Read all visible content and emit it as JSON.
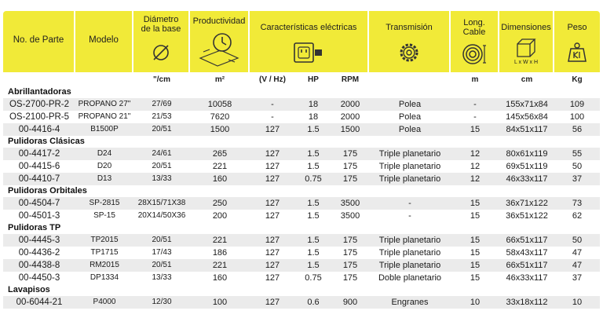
{
  "headers": {
    "part": "No. de Parte",
    "model": "Modelo",
    "base_line1": "Diámetro",
    "base_line2": "de la base",
    "productivity": "Productividad",
    "electrical": "Características eléctricas",
    "transmission": "Transmisión",
    "cable_line1": "Long.",
    "cable_line2": "Cable",
    "dimensions": "Dimensiones",
    "dims_box_label": "L x W x H",
    "weight": "Peso"
  },
  "units": {
    "base": "\"/cm",
    "productivity": "m²",
    "voltage": "(V / Hz)",
    "hp": "HP",
    "rpm": "RPM",
    "cable": "m",
    "dimensions": "cm",
    "weight": "Kg"
  },
  "colors": {
    "header_bg": "#f1ea38",
    "row_shade": "#ebebeb"
  },
  "icons": {
    "base": "diameter-icon",
    "productivity": "clock-area-icon",
    "electrical": "power-outlet-icon",
    "transmission": "gear-icon",
    "cable": "cable-coil-icon",
    "dimensions": "box-icon",
    "weight": "weight-icon"
  },
  "sections": [
    {
      "title": "Abrillantadoras",
      "rows": [
        {
          "part": "OS-2700-PR-2",
          "model": "PROPANO 27\"",
          "base": "27/69",
          "productivity": "10058",
          "voltage": "-",
          "hp": "18",
          "rpm": "2000",
          "transmission": "Polea",
          "cable": "-",
          "dimensions": "155x71x84",
          "weight": "109"
        },
        {
          "part": "OS-2100-PR-5",
          "model": "PROPANO 21\"",
          "base": "21/53",
          "productivity": "7620",
          "voltage": "-",
          "hp": "18",
          "rpm": "2000",
          "transmission": "Polea",
          "cable": "-",
          "dimensions": "145x56x84",
          "weight": "100"
        },
        {
          "part": "00-4416-4",
          "model": "B1500P",
          "base": "20/51",
          "productivity": "1500",
          "voltage": "127",
          "hp": "1.5",
          "rpm": "1500",
          "transmission": "Polea",
          "cable": "15",
          "dimensions": "84x51x117",
          "weight": "56"
        }
      ]
    },
    {
      "title": "Pulidoras Clásicas",
      "rows": [
        {
          "part": "00-4417-2",
          "model": "D24",
          "base": "24/61",
          "productivity": "265",
          "voltage": "127",
          "hp": "1.5",
          "rpm": "175",
          "transmission": "Triple planetario",
          "cable": "12",
          "dimensions": "80x61x119",
          "weight": "55"
        },
        {
          "part": "00-4415-6",
          "model": "D20",
          "base": "20/51",
          "productivity": "221",
          "voltage": "127",
          "hp": "1.5",
          "rpm": "175",
          "transmission": "Triple planetario",
          "cable": "12",
          "dimensions": "69x51x119",
          "weight": "50"
        },
        {
          "part": "00-4410-7",
          "model": "D13",
          "base": "13/33",
          "productivity": "160",
          "voltage": "127",
          "hp": "0.75",
          "rpm": "175",
          "transmission": "Triple planetario",
          "cable": "12",
          "dimensions": "46x33x117",
          "weight": "37"
        }
      ]
    },
    {
      "title": "Pulidoras Orbitales",
      "rows": [
        {
          "part": "00-4504-7",
          "model": "SP-2815",
          "base": "28X15/71X38",
          "productivity": "250",
          "voltage": "127",
          "hp": "1.5",
          "rpm": "3500",
          "transmission": "-",
          "cable": "15",
          "dimensions": "36x71x122",
          "weight": "73"
        },
        {
          "part": "00-4501-3",
          "model": "SP-15",
          "base": "20X14/50X36",
          "productivity": "200",
          "voltage": "127",
          "hp": "1.5",
          "rpm": "3500",
          "transmission": "-",
          "cable": "15",
          "dimensions": "36x51x122",
          "weight": "62"
        }
      ]
    },
    {
      "title": "Pulidoras TP",
      "rows": [
        {
          "part": "00-4445-3",
          "model": "TP2015",
          "base": "20/51",
          "productivity": "221",
          "voltage": "127",
          "hp": "1.5",
          "rpm": "175",
          "transmission": "Triple planetario",
          "cable": "15",
          "dimensions": "66x51x117",
          "weight": "50"
        },
        {
          "part": "00-4436-2",
          "model": "TP1715",
          "base": "17/43",
          "productivity": "186",
          "voltage": "127",
          "hp": "1.5",
          "rpm": "175",
          "transmission": "Triple planetario",
          "cable": "15",
          "dimensions": "58x43x117",
          "weight": "47"
        },
        {
          "part": "00-4438-8",
          "model": "RM2015",
          "base": "20/51",
          "productivity": "221",
          "voltage": "127",
          "hp": "1.5",
          "rpm": "175",
          "transmission": "Triple planetario",
          "cable": "15",
          "dimensions": "66x51x117",
          "weight": "47"
        },
        {
          "part": "00-4450-3",
          "model": "DP1334",
          "base": "13/33",
          "productivity": "160",
          "voltage": "127",
          "hp": "0.75",
          "rpm": "175",
          "transmission": "Doble planetario",
          "cable": "15",
          "dimensions": "46x33x117",
          "weight": "37"
        }
      ]
    },
    {
      "title": "Lavapisos",
      "rows": [
        {
          "part": "00-6044-21",
          "model": "P4000",
          "base": "12/30",
          "productivity": "100",
          "voltage": "127",
          "hp": "0.6",
          "rpm": "900",
          "transmission": "Engranes",
          "cable": "10",
          "dimensions": "33x18x112",
          "weight": "10"
        }
      ]
    }
  ]
}
